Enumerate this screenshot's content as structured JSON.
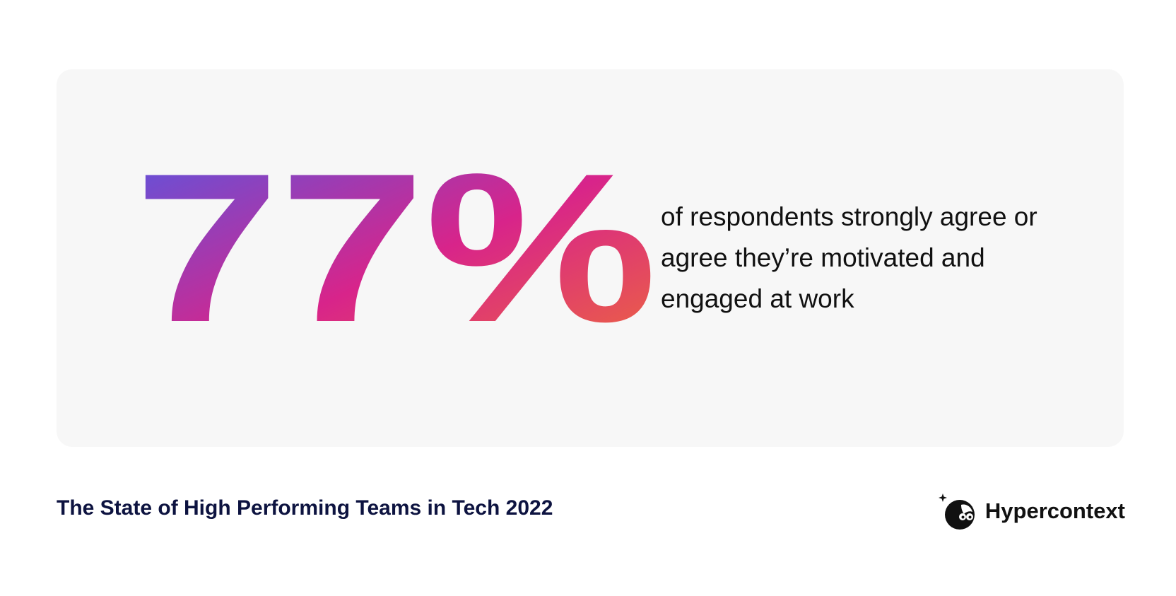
{
  "highlight": {
    "stat_value": "77%",
    "statement": "of respondents strongly agree or agree they’re motivated and engaged at work"
  },
  "footer": {
    "report_title": "The State of High Performing Teams in Tech 2022",
    "brand_name": "Hypercontext",
    "brand_icon": "hypercontext-logo-icon"
  },
  "colors": {
    "card_background": "#f7f7f7",
    "gradient_start": "#5458e4",
    "gradient_mid": "#d8248a",
    "gradient_end": "#ee6a3a",
    "title_color": "#0d1340"
  }
}
